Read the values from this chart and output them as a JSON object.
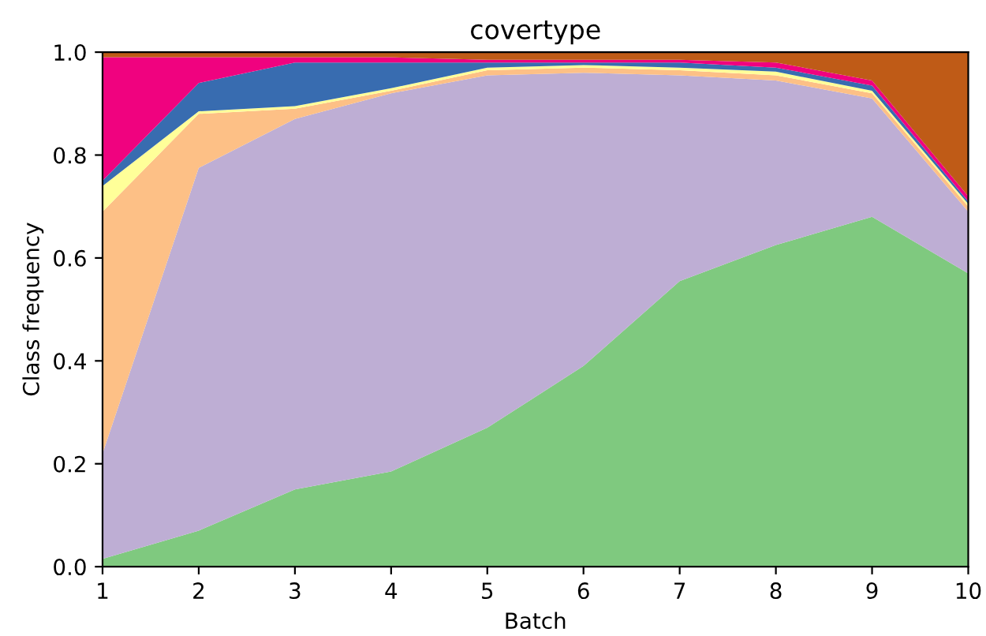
{
  "chart_data": {
    "type": "area",
    "stacked": true,
    "title": "covertype",
    "xlabel": "Batch",
    "ylabel": "Class frequency",
    "x": [
      1,
      2,
      3,
      4,
      5,
      6,
      7,
      8,
      9,
      10
    ],
    "series": [
      {
        "color": "#7fc97f",
        "values": [
          0.015,
          0.07,
          0.15,
          0.185,
          0.27,
          0.39,
          0.555,
          0.625,
          0.68,
          0.57
        ]
      },
      {
        "color": "#beaed4",
        "values": [
          0.205,
          0.705,
          0.72,
          0.735,
          0.685,
          0.57,
          0.4,
          0.32,
          0.23,
          0.12
        ]
      },
      {
        "color": "#fdc086",
        "values": [
          0.47,
          0.105,
          0.02,
          0.005,
          0.01,
          0.01,
          0.01,
          0.01,
          0.01,
          0.01
        ]
      },
      {
        "color": "#ffff99",
        "values": [
          0.05,
          0.005,
          0.005,
          0.005,
          0.005,
          0.005,
          0.005,
          0.007,
          0.005,
          0.005
        ]
      },
      {
        "color": "#386cb0",
        "values": [
          0.01,
          0.055,
          0.085,
          0.05,
          0.01,
          0.005,
          0.01,
          0.008,
          0.01,
          0.005
        ]
      },
      {
        "color": "#f0027f",
        "values": [
          0.24,
          0.05,
          0.01,
          0.01,
          0.005,
          0.005,
          0.005,
          0.01,
          0.01,
          0.01
        ]
      },
      {
        "color": "#bf5b17",
        "values": [
          0.01,
          0.01,
          0.01,
          0.01,
          0.015,
          0.015,
          0.015,
          0.02,
          0.055,
          0.28
        ]
      }
    ],
    "xlim": [
      1,
      10
    ],
    "xticks": [
      1,
      2,
      3,
      4,
      5,
      6,
      7,
      8,
      9,
      10
    ],
    "ylim": [
      0,
      1
    ],
    "yticks": [
      {
        "value": 0,
        "label": "0.0"
      },
      {
        "value": 0.2,
        "label": "0.2"
      },
      {
        "value": 0.4,
        "label": "0.4"
      },
      {
        "value": 0.6,
        "label": "0.6"
      },
      {
        "value": 0.8,
        "label": "0.8"
      },
      {
        "value": 1,
        "label": "1.0"
      }
    ]
  }
}
